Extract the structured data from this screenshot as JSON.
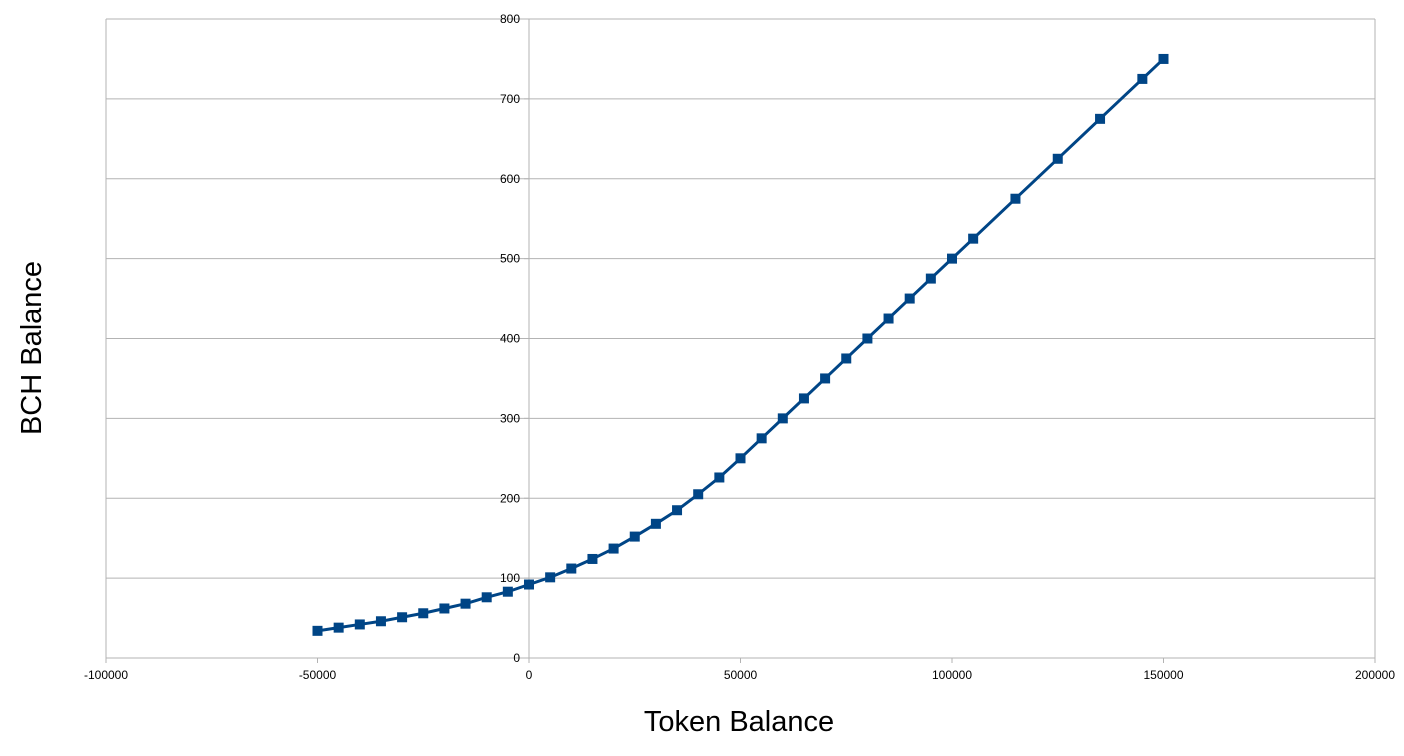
{
  "chart_data": {
    "type": "scatter",
    "title": "",
    "xlabel": "Token Balance",
    "ylabel": "BCH Balance",
    "xlim": [
      -100000,
      200000
    ],
    "ylim": [
      0,
      800
    ],
    "x_ticks": [
      -100000,
      -50000,
      0,
      50000,
      100000,
      150000,
      200000
    ],
    "y_ticks": [
      0,
      100,
      200,
      300,
      400,
      500,
      600,
      700,
      800
    ],
    "grid": "horizontal",
    "legend": "none",
    "series": [
      {
        "color": "#004586",
        "marker": "square",
        "line": "straight",
        "points": [
          [
            -50000,
            34
          ],
          [
            -45000,
            38
          ],
          [
            -40000,
            42
          ],
          [
            -35000,
            46
          ],
          [
            -30000,
            51
          ],
          [
            -25000,
            56
          ],
          [
            -20000,
            62
          ],
          [
            -15000,
            68
          ],
          [
            -10000,
            76
          ],
          [
            -5000,
            83
          ],
          [
            0,
            92
          ],
          [
            5000,
            101
          ],
          [
            10000,
            112
          ],
          [
            15000,
            124
          ],
          [
            20000,
            137
          ],
          [
            25000,
            152
          ],
          [
            30000,
            168
          ],
          [
            35000,
            185
          ],
          [
            40000,
            205
          ],
          [
            45000,
            226
          ],
          [
            50000,
            250
          ],
          [
            55000,
            275
          ],
          [
            60000,
            300
          ],
          [
            65000,
            325
          ],
          [
            70000,
            350
          ],
          [
            75000,
            375
          ],
          [
            80000,
            400
          ],
          [
            85000,
            425
          ],
          [
            90000,
            450
          ],
          [
            95000,
            475
          ],
          [
            100000,
            500
          ],
          [
            105000,
            525
          ],
          [
            115000,
            575
          ],
          [
            125000,
            625
          ],
          [
            135000,
            675
          ],
          [
            145000,
            725
          ],
          [
            150000,
            750
          ]
        ]
      }
    ]
  }
}
